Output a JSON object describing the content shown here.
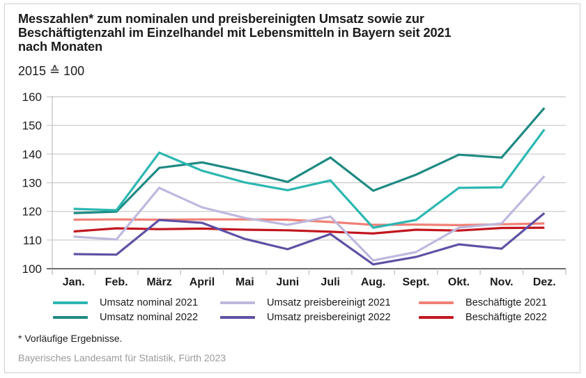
{
  "title_lines": [
    "Messzahlen* zum nominalen und preisbereinigten Umsatz sowie zur",
    "Beschäftigtenzahl im Einzelhandel mit Lebensmitteln in Bayern seit 2021",
    "nach Monaten"
  ],
  "subtitle": "2015 ≙ 100",
  "footnote": "* Vorläufige Ergebnisse.",
  "source": "Bayerisches Landesamt für Statistik, Fürth 2023",
  "chart_data": {
    "type": "line",
    "title": "Messzahlen* zum nominalen und preisbereinigten Umsatz sowie zur Beschäftigtenzahl im Einzelhandel mit Lebensmitteln in Bayern seit 2021 nach Monaten",
    "subtitle": "2015 ≙ 100",
    "xlabel": "",
    "ylabel": "",
    "categories": [
      "Jan.",
      "Feb.",
      "März",
      "April",
      "Mai",
      "Juni",
      "Juli",
      "Aug.",
      "Sept.",
      "Okt.",
      "Nov.",
      "Dez."
    ],
    "ylim": [
      100,
      160
    ],
    "yticks": [
      100,
      110,
      120,
      130,
      140,
      150,
      160
    ],
    "grid": "horizontal",
    "legend_position": "bottom",
    "series": [
      {
        "name": "Umsatz nominal 2021",
        "color": "#2cb7b1",
        "values": [
          120.9,
          120.4,
          140.5,
          134.2,
          130.1,
          127.4,
          130.8,
          114.3,
          117.0,
          128.2,
          128.4,
          148.6
        ]
      },
      {
        "name": "Umsatz nominal 2022",
        "color": "#1e8a83",
        "values": [
          119.4,
          119.9,
          135.2,
          137.1,
          133.9,
          130.3,
          138.8,
          127.2,
          132.8,
          139.8,
          138.8,
          156.1
        ]
      },
      {
        "name": "Umsatz preisbereinigt 2021",
        "color": "#beb8de",
        "values": [
          111.2,
          110.2,
          128.2,
          121.4,
          117.7,
          115.3,
          118.2,
          102.9,
          105.8,
          114.3,
          115.8,
          132.3
        ]
      },
      {
        "name": "Umsatz preisbereinigt 2022",
        "color": "#5f50a5",
        "values": [
          105.1,
          104.9,
          117.0,
          116.0,
          110.4,
          106.8,
          112.1,
          101.5,
          104.1,
          108.5,
          107.0,
          119.4
        ]
      },
      {
        "name": "Beschäftigte 2021",
        "color": "#ef8076",
        "values": [
          117.1,
          117.2,
          117.1,
          117.2,
          117.2,
          117.1,
          116.3,
          115.3,
          115.4,
          115.2,
          115.5,
          115.8
        ]
      },
      {
        "name": "Beschäftigte 2022",
        "color": "#c2161f",
        "values": [
          113.0,
          114.1,
          113.8,
          114.0,
          113.6,
          113.4,
          112.9,
          112.3,
          113.6,
          113.3,
          114.2,
          114.3
        ]
      }
    ]
  }
}
